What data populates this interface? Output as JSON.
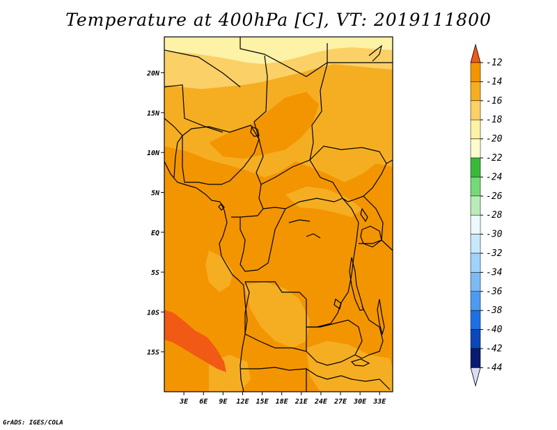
{
  "title": "Temperature at 400hPa [C], VT: 2019111800",
  "credit": "GrADS: IGES/COLA",
  "map": {
    "lon_range": [
      0,
      35
    ],
    "lat_range": [
      -20,
      24.5
    ],
    "lon_ticks": [
      {
        "value": 3,
        "label": "3E"
      },
      {
        "value": 6,
        "label": "6E"
      },
      {
        "value": 9,
        "label": "9E"
      },
      {
        "value": 12,
        "label": "12E"
      },
      {
        "value": 15,
        "label": "15E"
      },
      {
        "value": 18,
        "label": "18E"
      },
      {
        "value": 21,
        "label": "21E"
      },
      {
        "value": 24,
        "label": "24E"
      },
      {
        "value": 27,
        "label": "27E"
      },
      {
        "value": 30,
        "label": "30E"
      },
      {
        "value": 33,
        "label": "33E"
      }
    ],
    "lat_ticks": [
      {
        "value": 20,
        "label": "20N"
      },
      {
        "value": 15,
        "label": "15N"
      },
      {
        "value": 10,
        "label": "10N"
      },
      {
        "value": 5,
        "label": "5N"
      },
      {
        "value": 0,
        "label": "EQ"
      },
      {
        "value": -5,
        "label": "5S"
      },
      {
        "value": -10,
        "label": "10S"
      },
      {
        "value": -15,
        "label": "15S"
      }
    ]
  },
  "colorbar": {
    "levels": [
      "-12",
      "-14",
      "-16",
      "-18",
      "-20",
      "-22",
      "-24",
      "-26",
      "-28",
      "-30",
      "-32",
      "-34",
      "-36",
      "-38",
      "-40",
      "-42",
      "-44"
    ],
    "colors": [
      "#f05a14",
      "#f39500",
      "#f5ae22",
      "#fbd067",
      "#fdf2a6",
      "#fefccd",
      "#3ab83a",
      "#77d877",
      "#b8ecb8",
      "#ecf9fe",
      "#c8e8fb",
      "#a2d2f7",
      "#7cbaf4",
      "#4e9aee",
      "#1f6fe4",
      "#0b47b8",
      "#0a1b70",
      "#d8dcf4"
    ]
  }
}
